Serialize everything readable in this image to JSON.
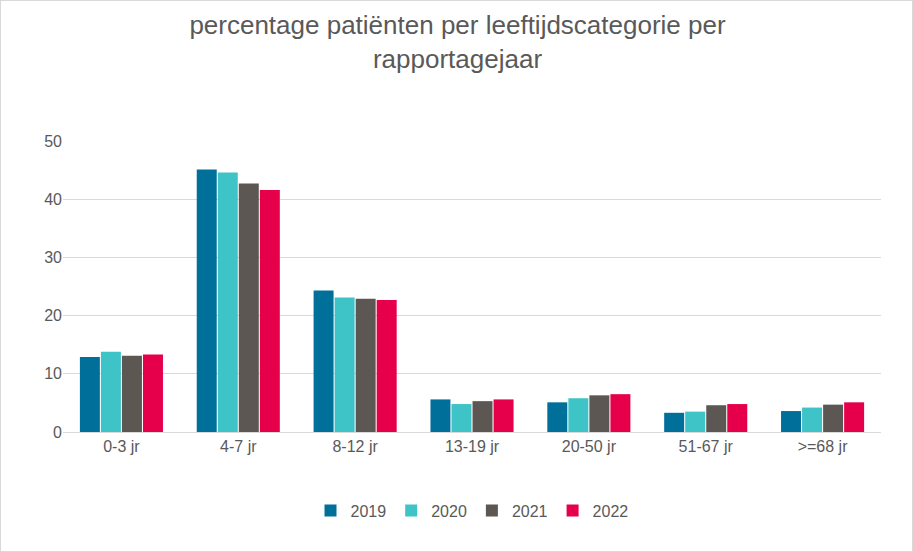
{
  "chart_data": {
    "type": "bar",
    "title": [
      "percentage patiënten per leeftijdscategorie per",
      "rapportagejaar"
    ],
    "categories": [
      "0-3 jr",
      "4-7 jr",
      "8-12 jr",
      "13-19 jr",
      "20-50 jr",
      "51-67 jr",
      ">=68 jr"
    ],
    "series": [
      {
        "name": "2019",
        "color": "#00709b",
        "values": [
          12.9,
          45.1,
          24.3,
          5.6,
          5.1,
          3.3,
          3.6
        ]
      },
      {
        "name": "2020",
        "color": "#3ec3c7",
        "values": [
          13.8,
          44.6,
          23.1,
          4.8,
          5.8,
          3.5,
          4.2
        ]
      },
      {
        "name": "2021",
        "color": "#5c5753",
        "values": [
          13.1,
          42.7,
          22.9,
          5.3,
          6.3,
          4.6,
          4.7
        ]
      },
      {
        "name": "2022",
        "color": "#e6004c",
        "values": [
          13.3,
          41.6,
          22.7,
          5.6,
          6.5,
          4.8,
          5.1
        ]
      }
    ],
    "ylim": [
      0,
      50
    ],
    "yticks": [
      0,
      10,
      20,
      30,
      40,
      50
    ],
    "grid": true,
    "legend": "bottom"
  }
}
